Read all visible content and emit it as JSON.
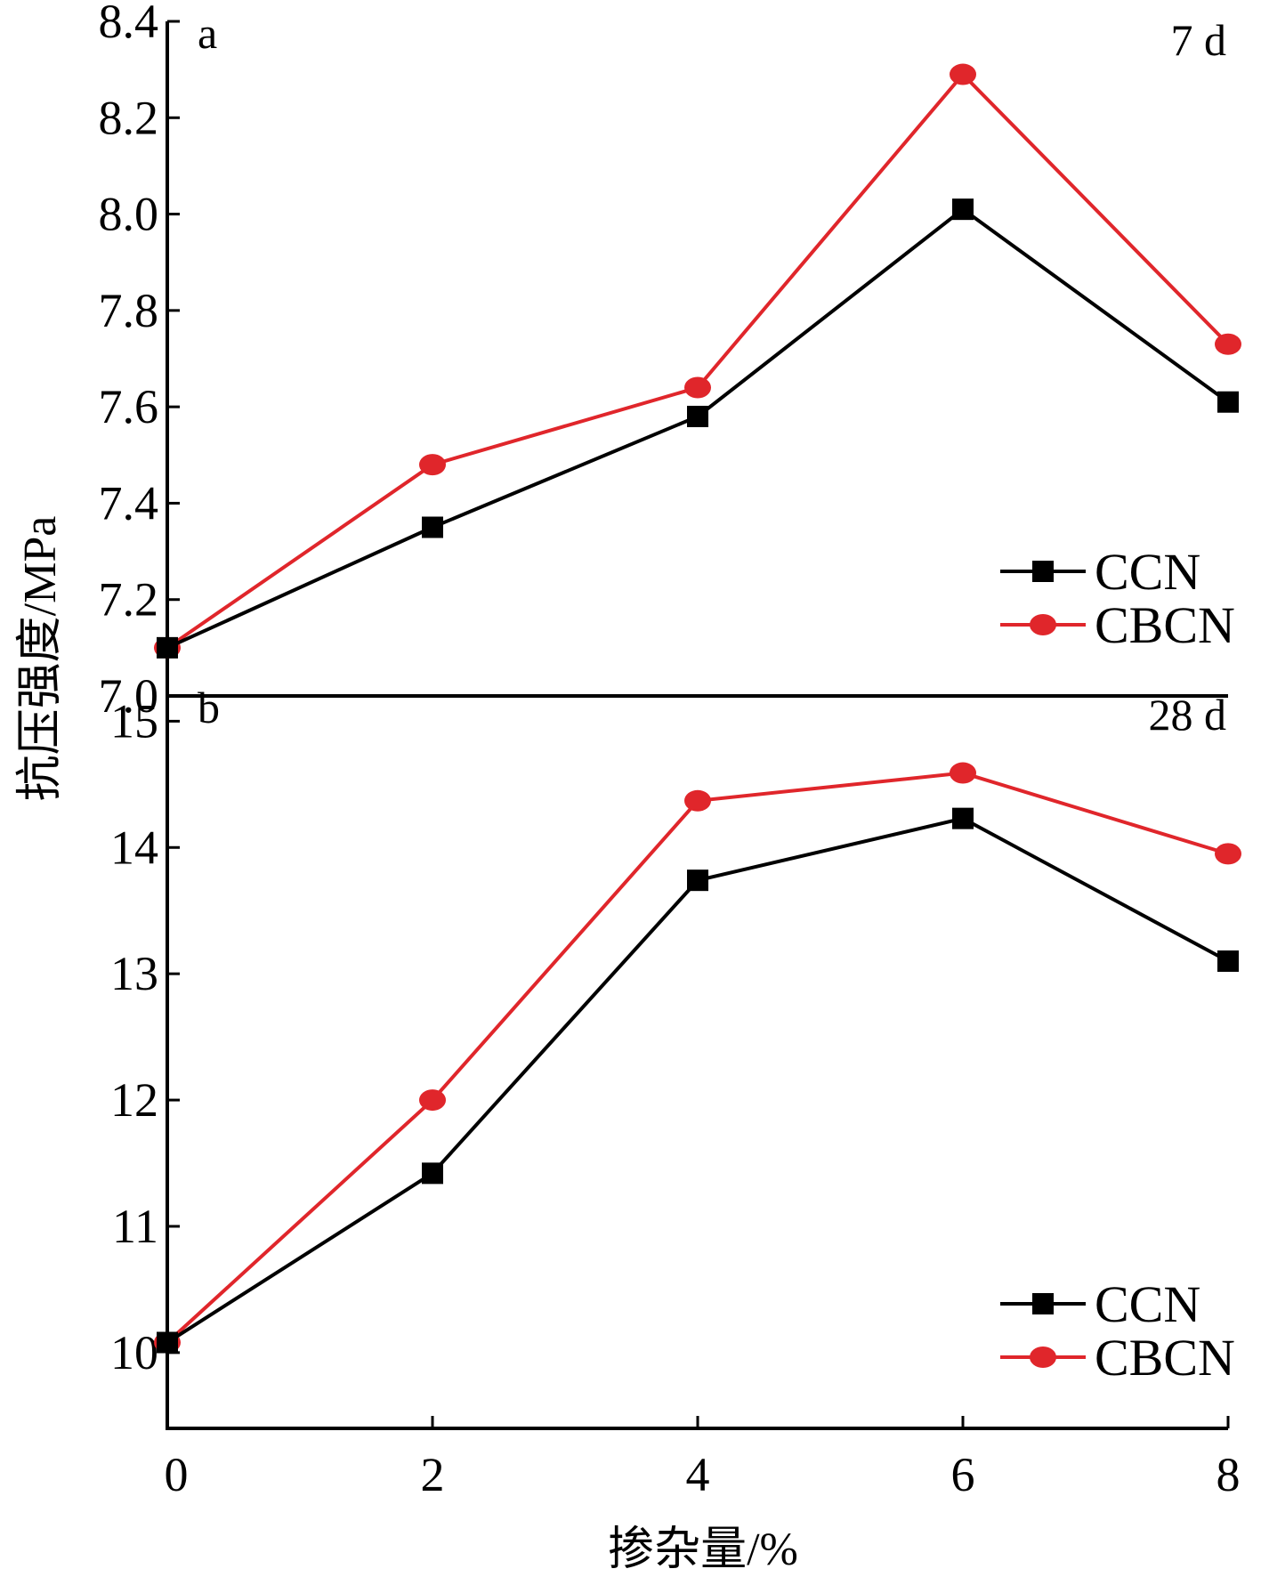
{
  "chart_data": [
    {
      "type": "line",
      "panel_label": "a",
      "age_label": "7 d",
      "x": [
        0,
        2,
        4,
        6,
        8
      ],
      "ylim": [
        7.0,
        8.4
      ],
      "yticks": [
        "7.0",
        "7.2",
        "7.4",
        "7.6",
        "7.8",
        "8.0",
        "8.2",
        "8.4"
      ],
      "grid": false,
      "legend_position": "bottom-right",
      "series": [
        {
          "name": "CCN",
          "color": "#000000",
          "marker": "square",
          "values": [
            7.1,
            7.35,
            7.58,
            8.01,
            7.61
          ]
        },
        {
          "name": "CBCN",
          "color": "#e0262b",
          "marker": "circle",
          "values": [
            7.1,
            7.48,
            7.64,
            8.29,
            7.73
          ]
        }
      ]
    },
    {
      "type": "line",
      "panel_label": "b",
      "age_label": "28 d",
      "x": [
        0,
        2,
        4,
        6,
        8
      ],
      "ylim": [
        9.4,
        15.2
      ],
      "yticks": [
        "10",
        "11",
        "12",
        "13",
        "14",
        "15"
      ],
      "grid": false,
      "legend_position": "bottom-right",
      "series": [
        {
          "name": "CCN",
          "color": "#000000",
          "marker": "square",
          "values": [
            10.08,
            11.42,
            13.74,
            14.23,
            13.1
          ]
        },
        {
          "name": "CBCN",
          "color": "#e0262b",
          "marker": "circle",
          "values": [
            10.08,
            12.0,
            14.37,
            14.59,
            13.95
          ]
        }
      ]
    }
  ],
  "axes": {
    "ylabel": "抗压强度/MPa",
    "xlabel": "掺杂量/%",
    "xticks": [
      "0",
      "2",
      "4",
      "6",
      "8"
    ]
  }
}
